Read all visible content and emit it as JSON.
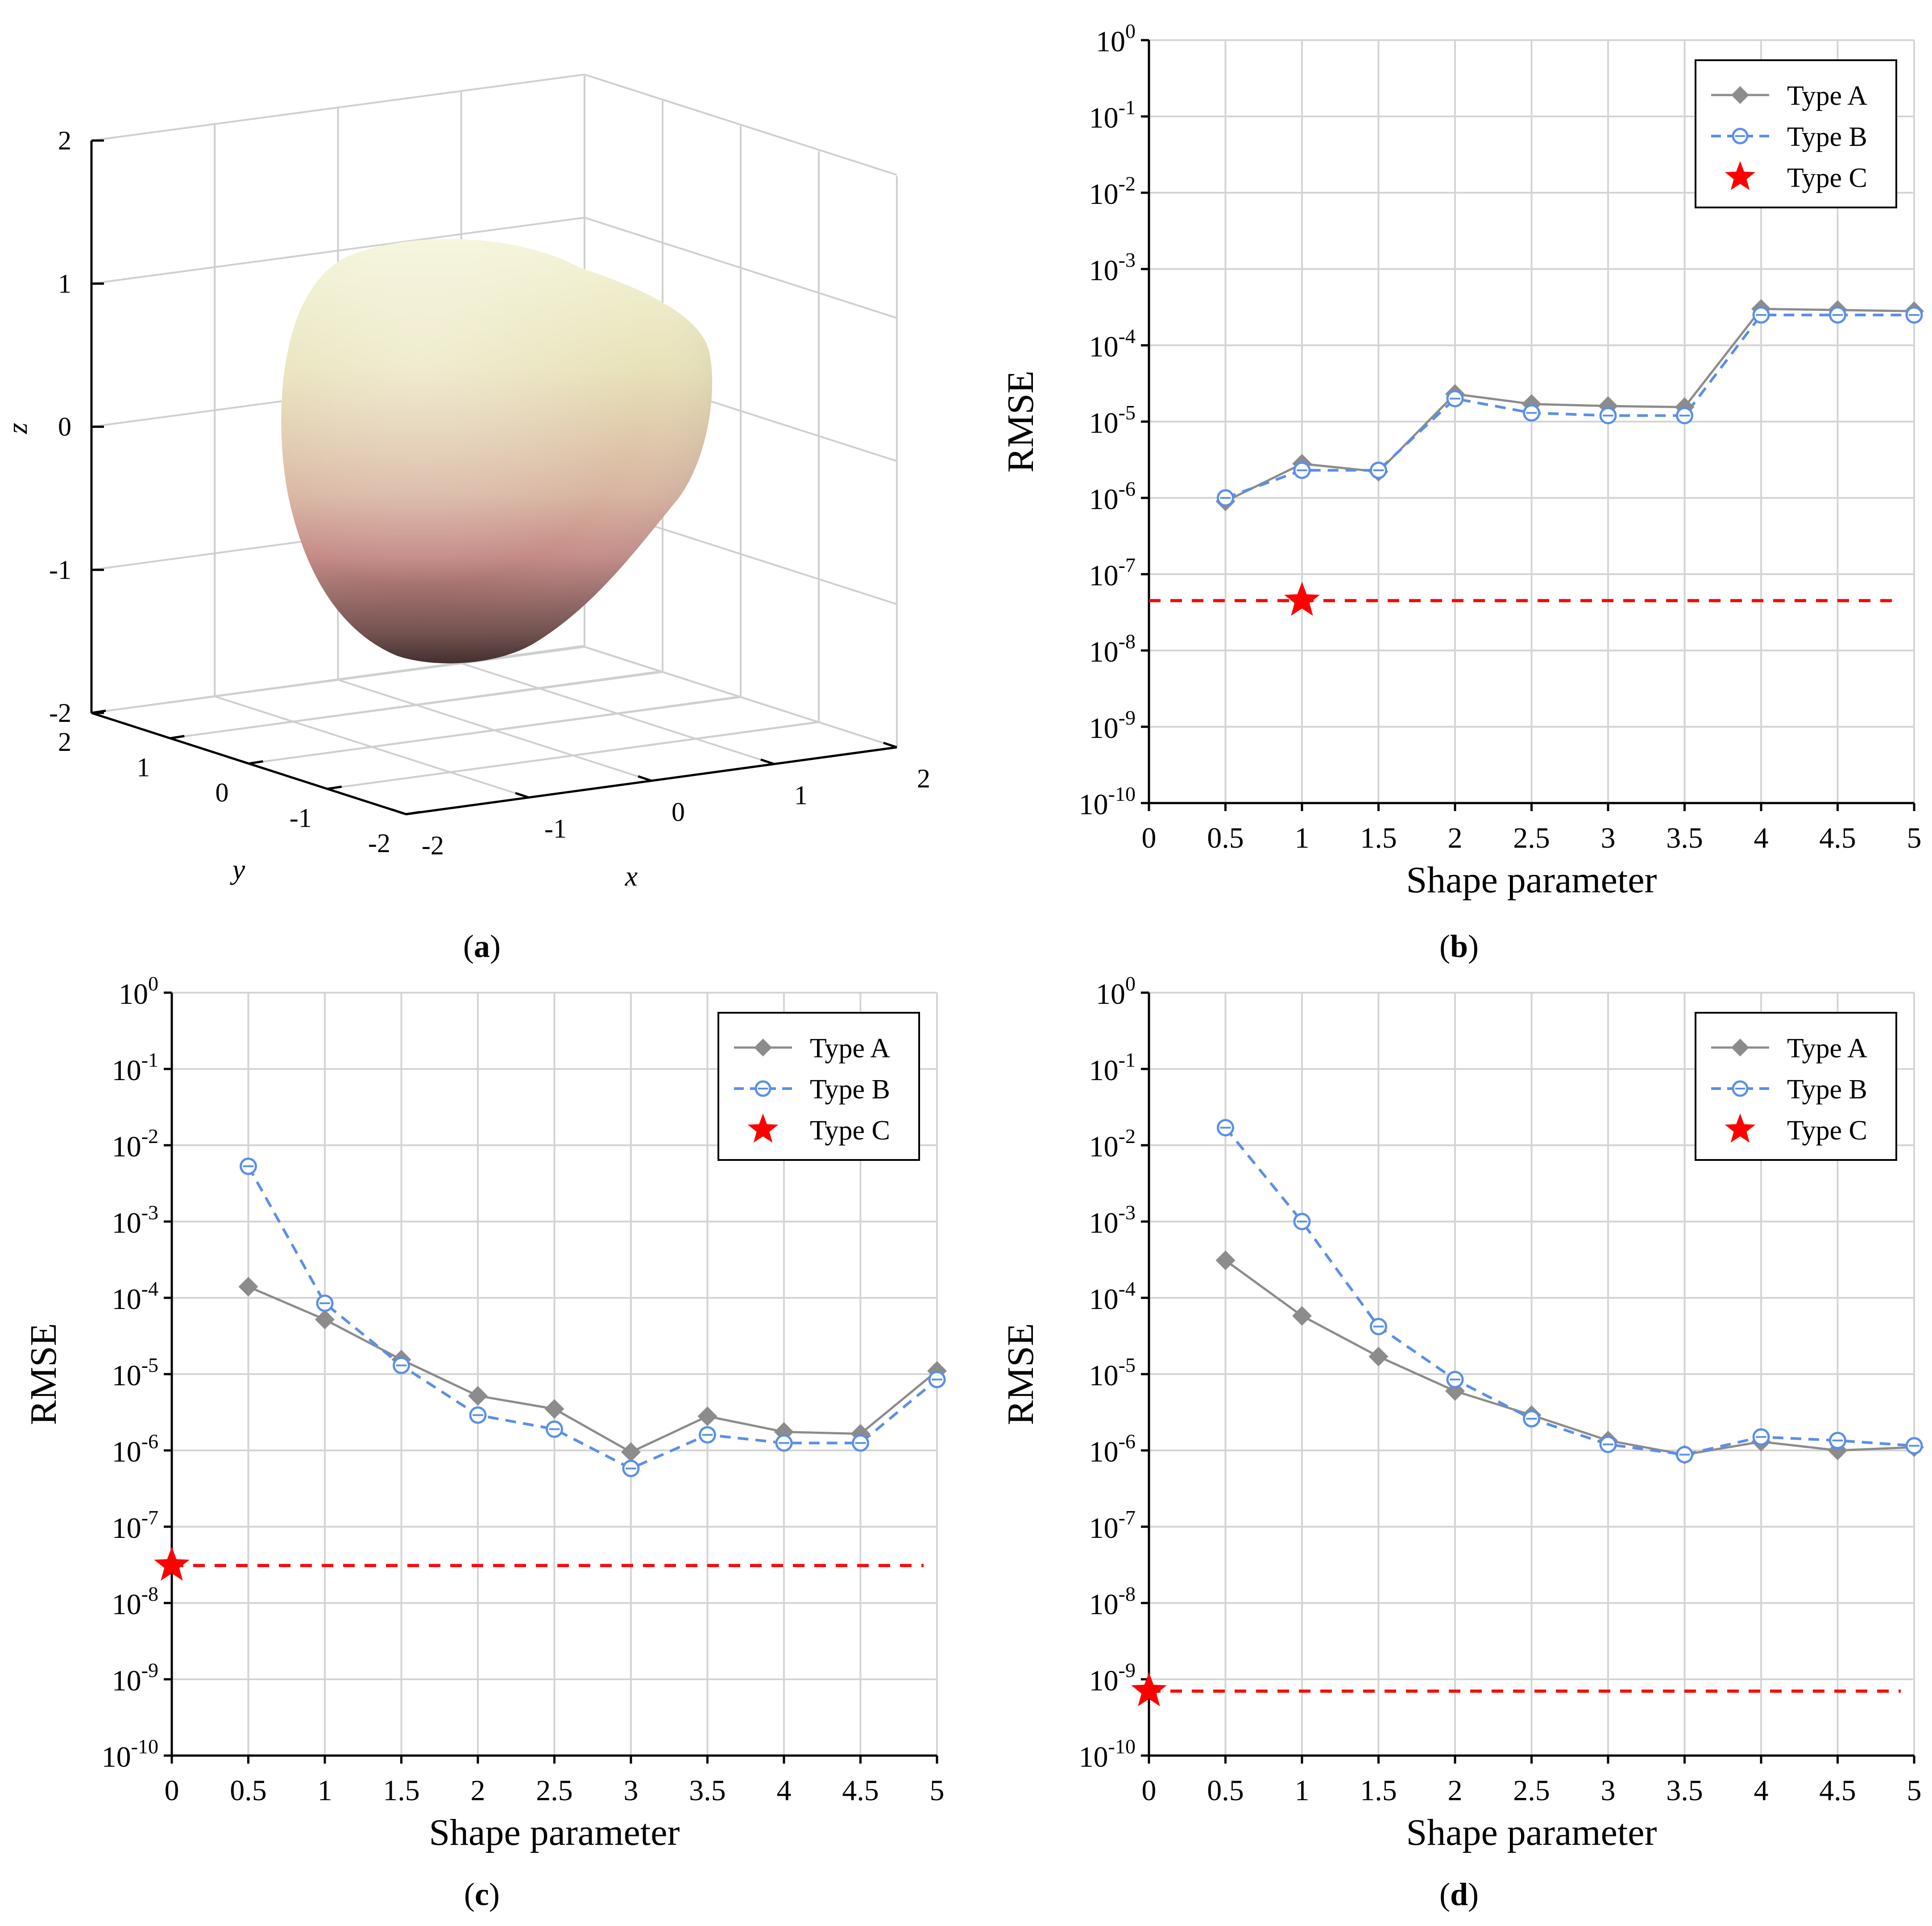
{
  "panel_a": {
    "caption": "a",
    "z_ticks": [
      "2",
      "1",
      "0",
      "-1",
      "-2"
    ],
    "y_ticks": [
      "2",
      "1",
      "0",
      "-1",
      "-2"
    ],
    "x_ticks": [
      "-2",
      "-1",
      "0",
      "1",
      "2"
    ],
    "x_label": "x",
    "y_label": "y",
    "z_label": "z",
    "surface_colors": [
      "#f4f4d8",
      "#e8e2b8",
      "#d8b4a0",
      "#c48a86",
      "#6e4a48",
      "#3a2424"
    ]
  },
  "chart_data": [
    {
      "id": "b",
      "caption": "b",
      "type": "line",
      "xlabel": "Shape parameter",
      "ylabel": "RMSE",
      "x_ticks": [
        "0",
        "0.5",
        "1",
        "1.5",
        "2",
        "2.5",
        "3",
        "3.5",
        "4",
        "4.5",
        "5"
      ],
      "xlim": [
        0,
        5
      ],
      "yscale": "log",
      "ylim_exp": [
        -10,
        0
      ],
      "y_tick_exponents": [
        "0",
        "-1",
        "-2",
        "-3",
        "-4",
        "-5",
        "-6",
        "-7",
        "-8",
        "-9",
        "-10"
      ],
      "y_tick_base": "10",
      "grid": true,
      "legend_position": "top-right",
      "legend": [
        "Type A",
        "Type B",
        "Type C"
      ],
      "series": [
        {
          "name": "Type A",
          "x": [
            0.5,
            1,
            1.5,
            2,
            2.5,
            3,
            3.5,
            4,
            4.5,
            5
          ],
          "values": [
            9e-07,
            2.8e-06,
            2.2e-06,
            2.3e-05,
            1.7e-05,
            1.6e-05,
            1.55e-05,
            0.0003,
            0.00029,
            0.00028
          ]
        },
        {
          "name": "Type B",
          "x": [
            0.5,
            1,
            1.5,
            2,
            2.5,
            3,
            3.5,
            4,
            4.5,
            5
          ],
          "values": [
            1e-06,
            2.3e-06,
            2.3e-06,
            2e-05,
            1.3e-05,
            1.2e-05,
            1.2e-05,
            0.00025,
            0.00025,
            0.00025
          ]
        },
        {
          "name": "Type C",
          "x": [
            1
          ],
          "values": [
            4.5e-08
          ],
          "reference_line": true
        }
      ]
    },
    {
      "id": "c",
      "caption": "c",
      "type": "line",
      "xlabel": "Shape parameter",
      "ylabel": "RMSE",
      "x_ticks": [
        "0",
        "0.5",
        "1",
        "1.5",
        "2",
        "2.5",
        "3",
        "3.5",
        "4",
        "4.5",
        "5"
      ],
      "xlim": [
        0,
        5
      ],
      "yscale": "log",
      "ylim_exp": [
        -10,
        0
      ],
      "y_tick_exponents": [
        "0",
        "-1",
        "-2",
        "-3",
        "-4",
        "-5",
        "-6",
        "-7",
        "-8",
        "-9",
        "-10"
      ],
      "y_tick_base": "10",
      "grid": true,
      "legend_position": "top-right",
      "legend": [
        "Type A",
        "Type B",
        "Type C"
      ],
      "series": [
        {
          "name": "Type A",
          "x": [
            0.5,
            1,
            1.5,
            2,
            2.5,
            3,
            3.5,
            4,
            4.5,
            5
          ],
          "values": [
            0.00014,
            5.2e-05,
            1.55e-05,
            5.2e-06,
            3.5e-06,
            9.5e-07,
            2.8e-06,
            1.75e-06,
            1.65e-06,
            1.1e-05
          ]
        },
        {
          "name": "Type B",
          "x": [
            0.5,
            1,
            1.5,
            2,
            2.5,
            3,
            3.5,
            4,
            4.5,
            5
          ],
          "values": [
            0.0053,
            8.5e-05,
            1.3e-05,
            2.9e-06,
            1.9e-06,
            5.8e-07,
            1.6e-06,
            1.25e-06,
            1.25e-06,
            8.5e-06
          ]
        },
        {
          "name": "Type C",
          "x": [
            0
          ],
          "values": [
            3.1e-08
          ],
          "reference_line": true
        }
      ]
    },
    {
      "id": "d",
      "caption": "d",
      "type": "line",
      "xlabel": "Shape parameter",
      "ylabel": "RMSE",
      "x_ticks": [
        "0",
        "0.5",
        "1",
        "1.5",
        "2",
        "2.5",
        "3",
        "3.5",
        "4",
        "4.5",
        "5"
      ],
      "xlim": [
        0,
        5
      ],
      "yscale": "log",
      "ylim_exp": [
        -10,
        0
      ],
      "y_tick_exponents": [
        "0",
        "-1",
        "-2",
        "-3",
        "-4",
        "-5",
        "-6",
        "-7",
        "-8",
        "-9",
        "-10"
      ],
      "y_tick_base": "10",
      "grid": true,
      "legend_position": "top-right",
      "legend": [
        "Type A",
        "Type B",
        "Type C"
      ],
      "series": [
        {
          "name": "Type A",
          "x": [
            0.5,
            1,
            1.5,
            2,
            2.5,
            3,
            3.5,
            4,
            4.5,
            5
          ],
          "values": [
            0.00031,
            5.8e-05,
            1.7e-05,
            6e-06,
            2.9e-06,
            1.35e-06,
            8.8e-07,
            1.3e-06,
            1e-06,
            1.1e-06
          ]
        },
        {
          "name": "Type B",
          "x": [
            0.5,
            1,
            1.5,
            2,
            2.5,
            3,
            3.5,
            4,
            4.5,
            5
          ],
          "values": [
            0.017,
            0.001,
            4.2e-05,
            8.5e-06,
            2.6e-06,
            1.2e-06,
            8.8e-07,
            1.5e-06,
            1.35e-06,
            1.15e-06
          ]
        },
        {
          "name": "Type C",
          "x": [
            0
          ],
          "values": [
            7e-10
          ],
          "reference_line": true
        }
      ]
    }
  ],
  "colors": {
    "type_a": "#8c8c8c",
    "type_b": "#5b8fe8",
    "type_c": "#ff0000",
    "grid": "#d4d4d4",
    "axis": "#000000",
    "grid3d": "#cfcfcf"
  }
}
